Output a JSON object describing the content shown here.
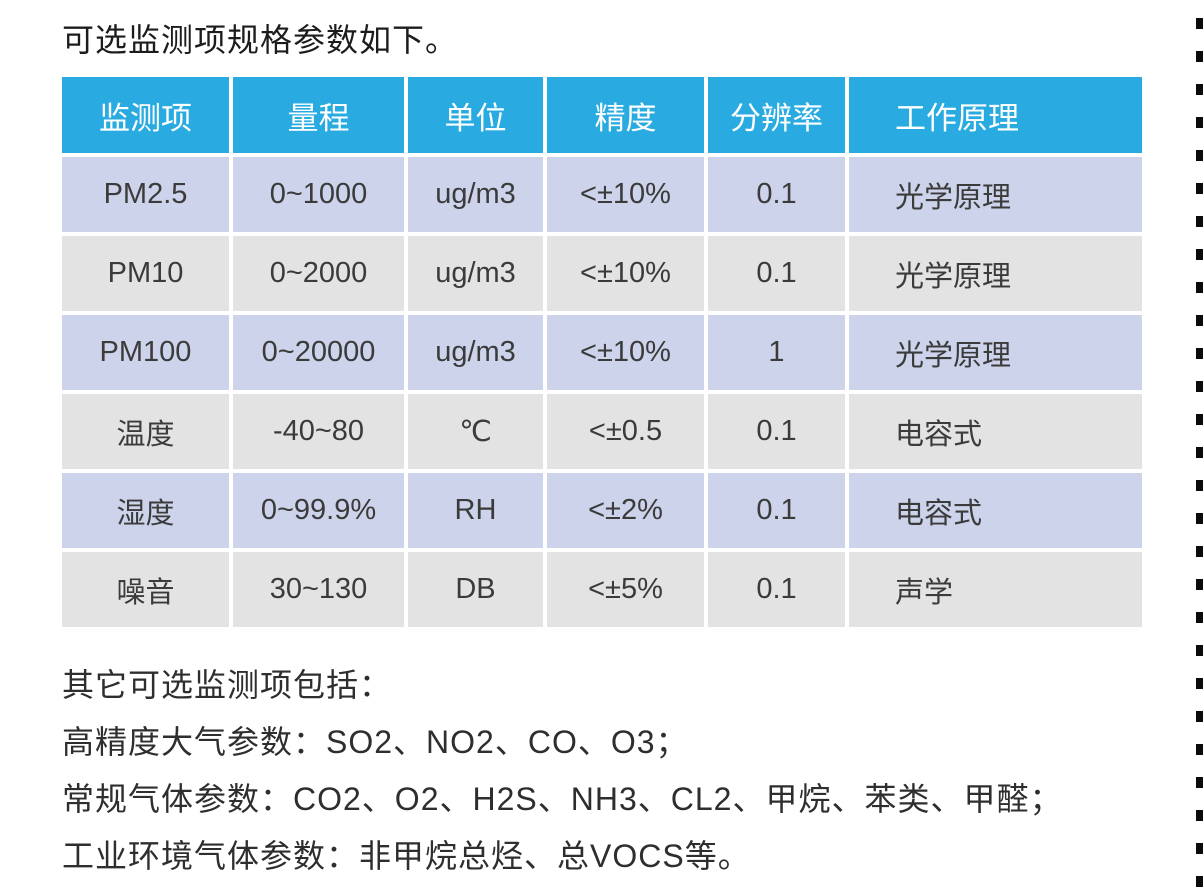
{
  "page": {
    "title": "可选监测项规格参数如下。"
  },
  "table": {
    "headers": [
      "监测项",
      "量程",
      "单位",
      "精度",
      "分辨率",
      "工作原理"
    ],
    "rows": [
      [
        "PM2.5",
        "0~1000",
        "ug/m3",
        "<±10%",
        "0.1",
        "光学原理"
      ],
      [
        "PM10",
        "0~2000",
        "ug/m3",
        "<±10%",
        "0.1",
        "光学原理"
      ],
      [
        "PM100",
        "0~20000",
        "ug/m3",
        "<±10%",
        "1",
        "光学原理"
      ],
      [
        "温度",
        "-40~80",
        "℃",
        "<±0.5",
        "0.1",
        "电容式"
      ],
      [
        "湿度",
        "0~99.9%",
        "RH",
        "<±2%",
        "0.1",
        "电容式"
      ],
      [
        "噪音",
        "30~130",
        "DB",
        "<±5%",
        "0.1",
        "声学"
      ]
    ]
  },
  "notes": {
    "intro": "其它可选监测项包括：",
    "lines": [
      "高精度大气参数：SO2、NO2、CO、O3；",
      "常规气体参数：CO2、O2、H2S、NH3、CL2、甲烷、苯类、甲醛；",
      "工业环境气体参数：非甲烷总烃、总VOCS等。"
    ]
  },
  "colors": {
    "header_bg": "#29abe2",
    "header_text": "#ffffff",
    "row_blue": "#cdd3ea",
    "row_gray": "#e3e3e3",
    "body_text": "#3b3b3b",
    "cut_line": "#0b0b0b"
  }
}
